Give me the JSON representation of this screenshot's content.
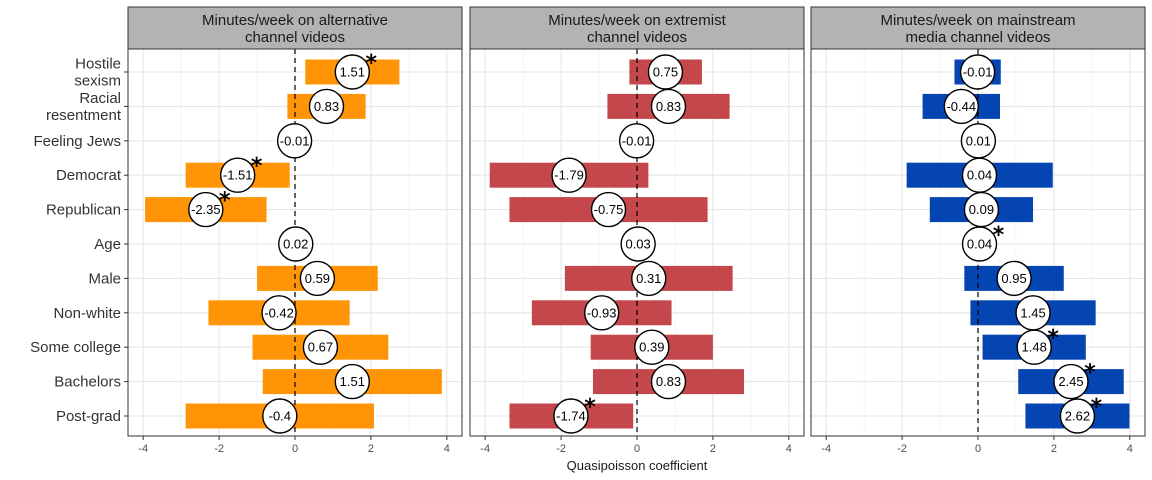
{
  "chart_data": {
    "type": "bar",
    "xlabel": "Quasipoisson coefficient",
    "xlim": [
      -4.4,
      4.4
    ],
    "xticks": [
      -4,
      -2,
      0,
      2,
      4
    ],
    "grid": true,
    "significance_marker": "*",
    "categories": [
      "Hostile\nsexism",
      "Racial\nresentment",
      "Feeling Jews",
      "Democrat",
      "Republican",
      "Age",
      "Male",
      "Non-white",
      "Some college",
      "Bachelors",
      "Post-grad"
    ],
    "panels": [
      {
        "title": "Minutes/week on alternative\nchannel videos",
        "color": "#FF9506",
        "estimates": [
          1.51,
          0.83,
          -0.01,
          -1.51,
          -2.35,
          0.02,
          0.59,
          -0.42,
          0.67,
          1.51,
          -0.4
        ],
        "labels": [
          "1.51",
          "0.83",
          "-0.01",
          "-1.51",
          "-2.35",
          "0.02",
          "0.59",
          "-0.42",
          "0.67",
          "1.51",
          "-0.4"
        ],
        "lower": [
          0.27,
          -0.2,
          null,
          -2.88,
          -3.95,
          null,
          -1.0,
          -2.28,
          -1.12,
          -0.85,
          -2.88
        ],
        "upper": [
          2.75,
          1.86,
          null,
          -0.14,
          -0.75,
          null,
          2.18,
          1.44,
          2.46,
          3.87,
          2.08
        ],
        "significant": [
          true,
          false,
          false,
          true,
          true,
          false,
          false,
          false,
          false,
          false,
          false
        ]
      },
      {
        "title": "Minutes/week on extremist\nchannel videos",
        "color": "#C4474C",
        "estimates": [
          0.75,
          0.83,
          -0.01,
          -1.79,
          -0.75,
          0.03,
          0.31,
          -0.93,
          0.39,
          0.83,
          -1.74
        ],
        "labels": [
          "0.75",
          "0.83",
          "-0.01",
          "-1.79",
          "-0.75",
          "0.03",
          "0.31",
          "-0.93",
          "0.39",
          "0.83",
          "-1.74"
        ],
        "lower": [
          -0.2,
          -0.78,
          null,
          -3.88,
          -3.36,
          null,
          -1.9,
          -2.77,
          -1.22,
          -1.16,
          -3.36
        ],
        "upper": [
          1.71,
          2.44,
          null,
          0.3,
          1.86,
          null,
          2.52,
          0.91,
          2.0,
          2.82,
          -0.1
        ],
        "significant": [
          false,
          false,
          false,
          false,
          false,
          false,
          false,
          false,
          false,
          false,
          true
        ]
      },
      {
        "title": "Minutes/week on mainstream\nmedia channel videos",
        "color": "#0545B2",
        "estimates": [
          -0.01,
          -0.44,
          0.01,
          0.04,
          0.09,
          0.04,
          0.95,
          1.45,
          1.48,
          2.45,
          2.62
        ],
        "labels": [
          "-0.01",
          "-0.44",
          "0.01",
          "0.04",
          "0.09",
          "0.04",
          "0.95",
          "1.45",
          "1.48",
          "2.45",
          "2.62"
        ],
        "lower": [
          -0.62,
          -1.46,
          null,
          -1.88,
          -1.27,
          null,
          -0.36,
          -0.2,
          0.12,
          1.06,
          1.25
        ],
        "upper": [
          0.6,
          0.58,
          null,
          1.97,
          1.45,
          null,
          2.26,
          3.1,
          2.84,
          3.84,
          3.99
        ],
        "significant": [
          false,
          false,
          false,
          false,
          false,
          true,
          false,
          false,
          true,
          true,
          true
        ]
      }
    ]
  }
}
